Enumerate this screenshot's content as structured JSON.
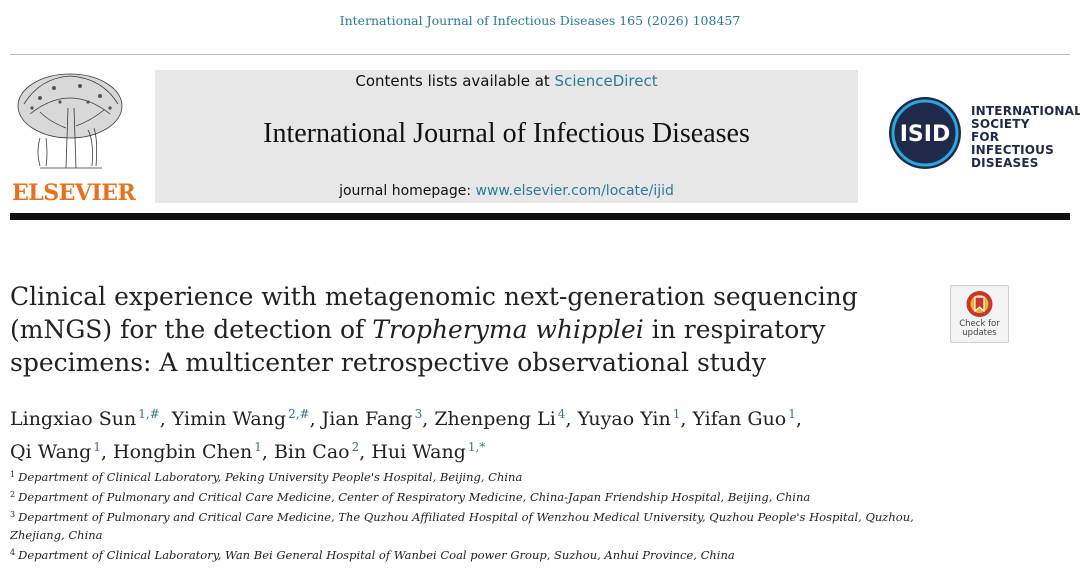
{
  "header": {
    "citation": "International Journal of Infectious Diseases 165 (2026) 108457"
  },
  "masthead": {
    "contents_prefix": "Contents lists available at ",
    "contents_link": "ScienceDirect",
    "journal_name": "International Journal of Infectious Diseases",
    "homepage_prefix": "journal homepage: ",
    "homepage_link": "www.elsevier.com/locate/ijid"
  },
  "publisher": {
    "logo_text": "ELSEVIER",
    "logo_color": "#e9711c"
  },
  "society": {
    "abbr": "ISID",
    "name_lines": [
      "INTERNATIONAL",
      "SOCIETY",
      "FOR INFECTIOUS",
      "DISEASES"
    ],
    "color": "#1f2a4a"
  },
  "article": {
    "title_part1": "Clinical experience with metagenomic next-generation sequencing (mNGS) for the detection of ",
    "title_italic": "Tropheryma whipplei",
    "title_part2": " in respiratory specimens: A multicenter retrospective observational study"
  },
  "check_updates": {
    "line1": "Check for",
    "line2": "updates"
  },
  "authors": [
    {
      "name": "Lingxiao Sun",
      "sup": "1,#"
    },
    {
      "name": "Yimin Wang",
      "sup": "2,#"
    },
    {
      "name": "Jian Fang",
      "sup": "3"
    },
    {
      "name": "Zhenpeng Li",
      "sup": "4"
    },
    {
      "name": "Yuyao Yin",
      "sup": "1"
    },
    {
      "name": "Yifan Guo",
      "sup": "1"
    },
    {
      "name": "Qi Wang",
      "sup": "1"
    },
    {
      "name": "Hongbin Chen",
      "sup": "1"
    },
    {
      "name": "Bin Cao",
      "sup": "2"
    },
    {
      "name": "Hui Wang",
      "sup": "1,*"
    }
  ],
  "affiliations": [
    {
      "num": "1",
      "text": "Department of Clinical Laboratory, Peking University People's Hospital, Beijing, China"
    },
    {
      "num": "2",
      "text": "Department of Pulmonary and Critical Care Medicine, Center of Respiratory Medicine, China-Japan Friendship Hospital, Beijing, China"
    },
    {
      "num": "3",
      "text": "Department of Pulmonary and Critical Care Medicine, The Quzhou Affiliated Hospital of Wenzhou Medical University, Quzhou People's Hospital, Quzhou, Zhejiang, China"
    },
    {
      "num": "4",
      "text": "Department of Clinical Laboratory, Wan Bei General Hospital of Wanbei Coal power Group, Suzhou, Anhui Province, China"
    }
  ],
  "colors": {
    "link": "#2b7a9b",
    "masthead_bg": "#e7e7e7",
    "badge_red": "#c8362d",
    "badge_yellow": "#f0b429"
  }
}
